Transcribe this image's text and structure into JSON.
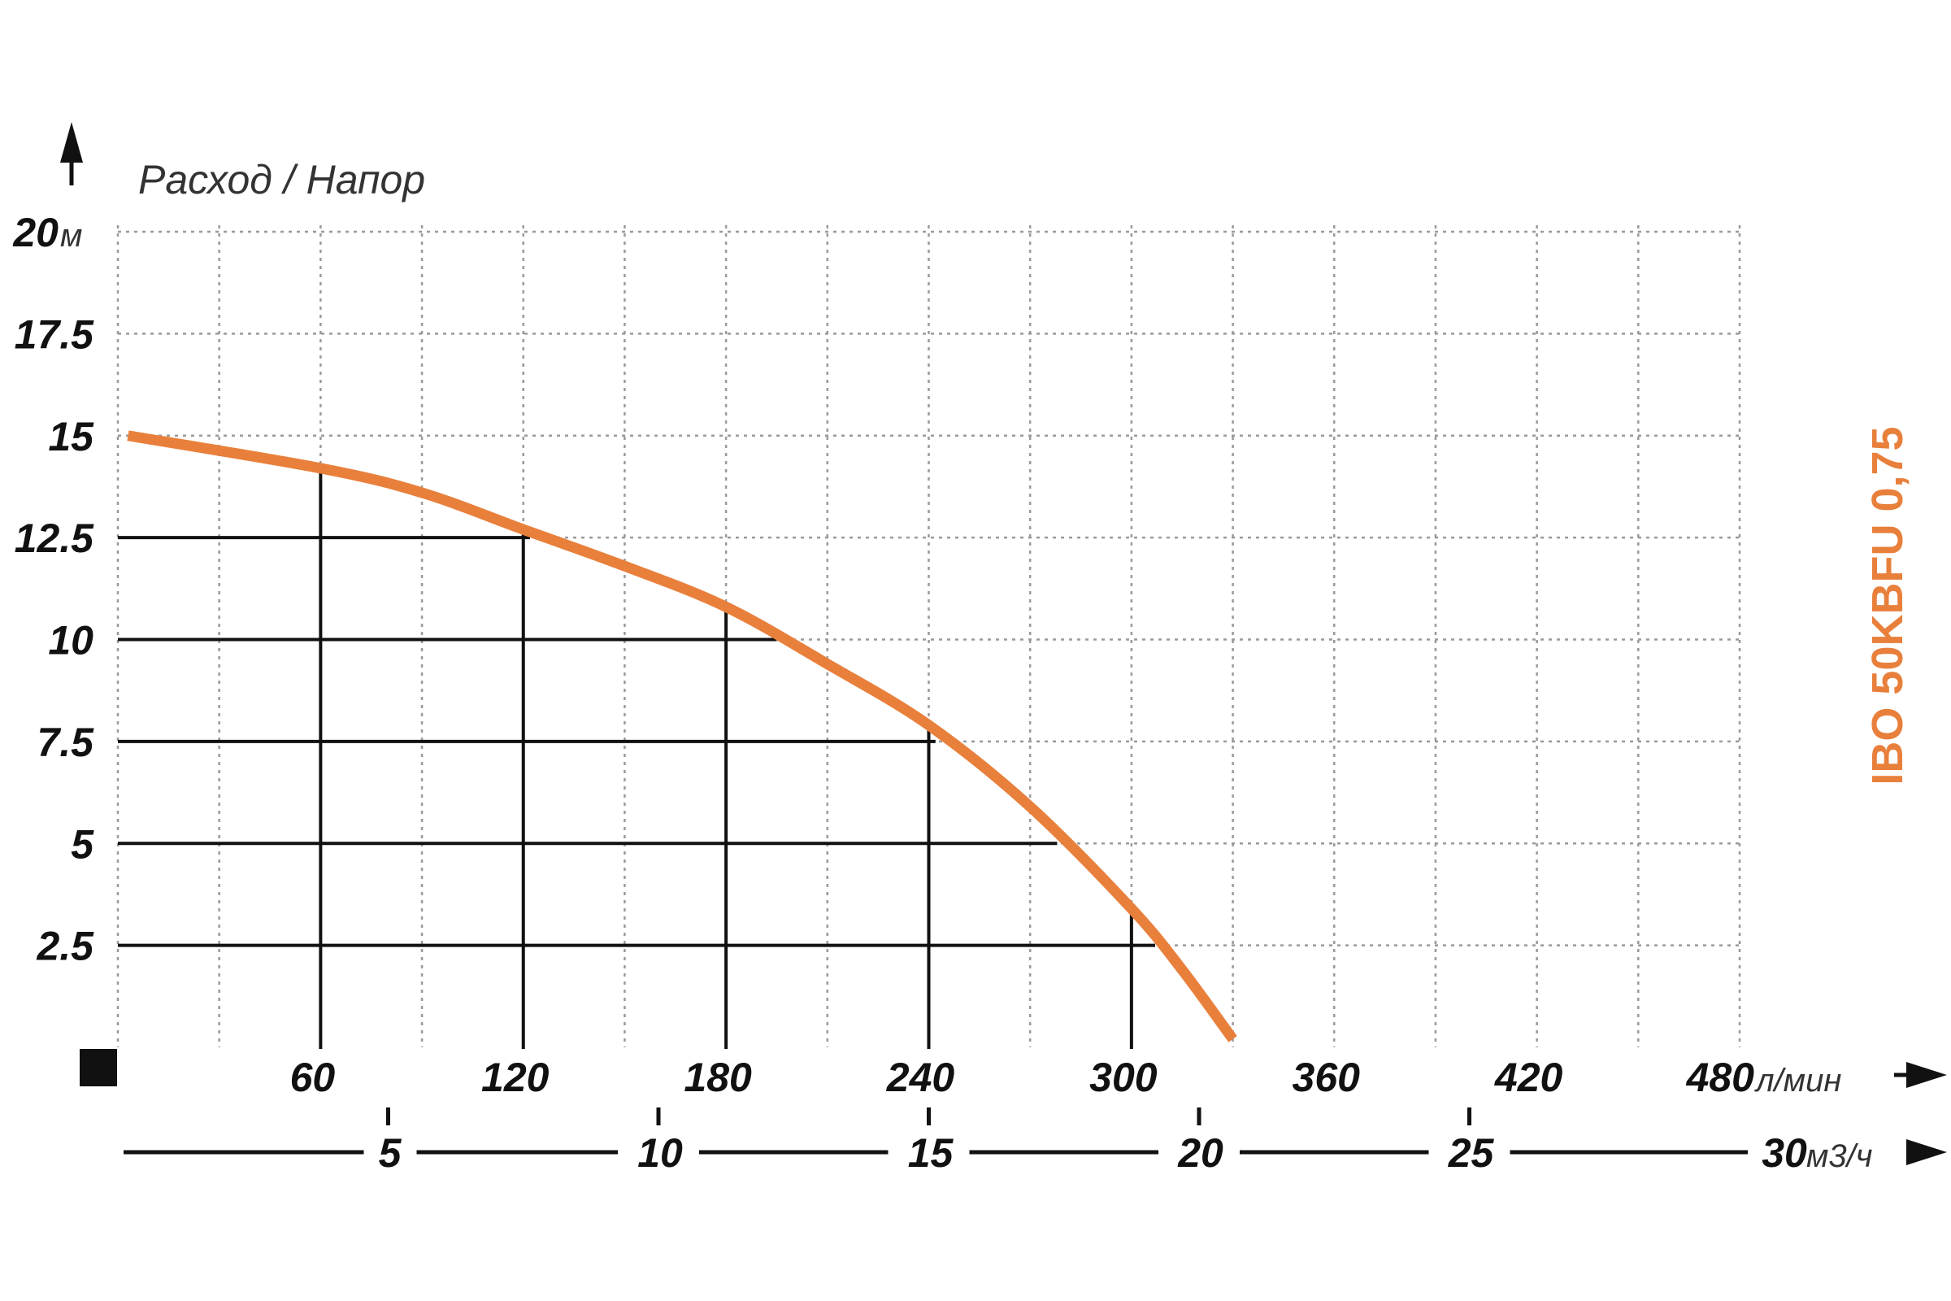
{
  "chart_data": {
    "type": "line",
    "title": "Расход / Напор",
    "model_label": "IBO 50KBFU 0,75",
    "y_axis": {
      "unit": "м",
      "ticks": [
        "20",
        "17.5",
        "15",
        "12.5",
        "10",
        "7.5",
        "5",
        "2.5"
      ],
      "range": [
        0,
        20
      ]
    },
    "x_axis_primary": {
      "unit": "л/мин",
      "ticks": [
        "60",
        "120",
        "180",
        "240",
        "300",
        "360",
        "420",
        "480"
      ],
      "range": [
        0,
        480
      ]
    },
    "x_axis_secondary": {
      "unit": "м3/ч",
      "ticks": [
        "5",
        "10",
        "15",
        "20",
        "25",
        "30"
      ],
      "range": [
        0,
        30
      ]
    },
    "series": [
      {
        "color": "#e8803c",
        "x": [
          3,
          60,
          90,
          120,
          150,
          180,
          210,
          240,
          270,
          300,
          315,
          330
        ],
        "y": [
          15,
          14.2,
          13.6,
          12.7,
          11.8,
          10.8,
          9.4,
          7.9,
          5.9,
          3.4,
          1.9,
          0.2
        ]
      }
    ],
    "reference_points": [
      {
        "x": 60,
        "y": 14.2
      },
      {
        "x": 120,
        "y": 12.7
      },
      {
        "x": 180,
        "y": 10.8
      },
      {
        "x": 240,
        "y": 7.9
      },
      {
        "x": 300,
        "y": 3.4
      }
    ],
    "reference_levels": [
      {
        "y": 12.5,
        "x_end": 122
      },
      {
        "y": 10,
        "x_end": 195
      },
      {
        "y": 7.5,
        "x_end": 242
      },
      {
        "y": 5,
        "x_end": 278
      },
      {
        "y": 2.5,
        "x_end": 307
      }
    ],
    "grid": true
  }
}
